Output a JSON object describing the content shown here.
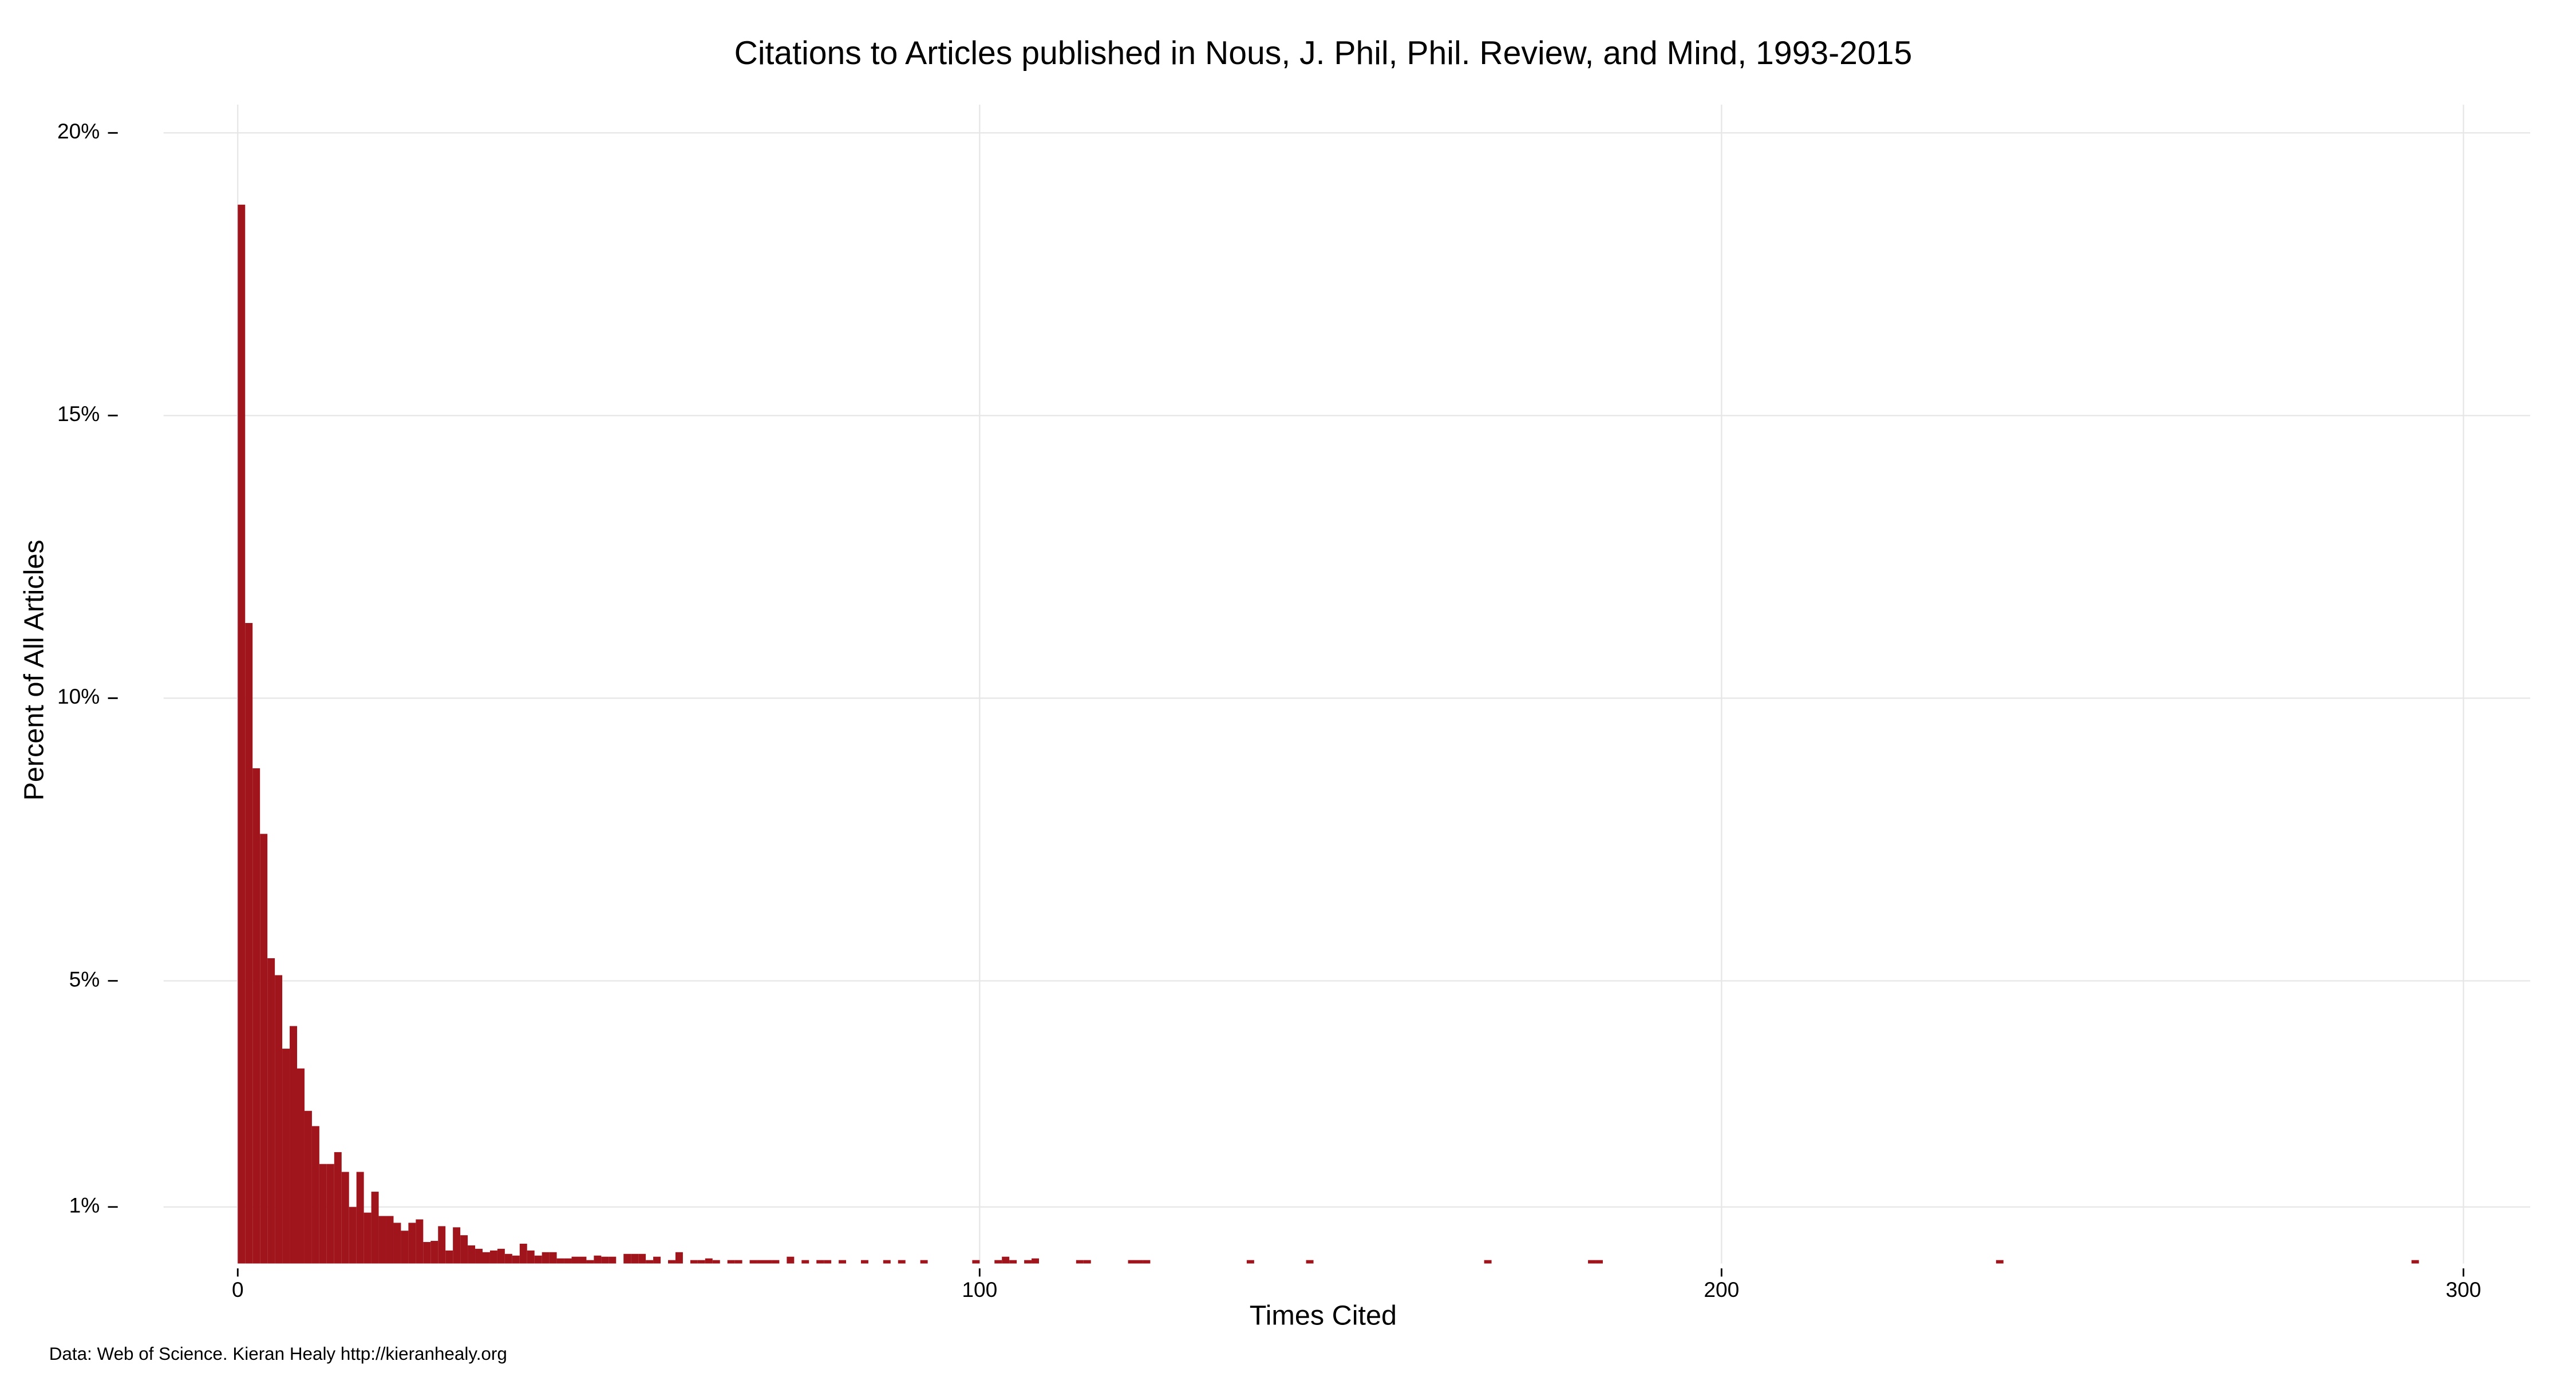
{
  "chart_data": {
    "type": "histogram",
    "title": "Citations to Articles published in Nous, J. Phil, Phil. Review, and Mind, 1993-2015",
    "x_label": "Times Cited",
    "y_label": "Percent of All Articles",
    "caption": "Data: Web of Science. Kieran Healy http://kieranhealy.org",
    "color": "#a0141c",
    "grid": true,
    "xlim": [
      -10,
      309
    ],
    "ylim": [
      0,
      20.5
    ],
    "xticks": [
      0,
      100,
      200,
      300
    ],
    "yticks": [
      {
        "value": 1,
        "label": "1%"
      },
      {
        "value": 5,
        "label": "5%"
      },
      {
        "value": 10,
        "label": "10%"
      },
      {
        "value": 15,
        "label": "15%"
      },
      {
        "value": 20,
        "label": "20%"
      }
    ],
    "bins": [
      0,
      1,
      2,
      3,
      4,
      5,
      6,
      7,
      8,
      9,
      10,
      11,
      12,
      13,
      14,
      15,
      16,
      17,
      18,
      19,
      20,
      21,
      22,
      23,
      24,
      25,
      26,
      27,
      28,
      29,
      30,
      31,
      32,
      33,
      34,
      35,
      36,
      37,
      38,
      39,
      40,
      41,
      42,
      43,
      44,
      45,
      46,
      47,
      48,
      49,
      50,
      51,
      52,
      53,
      54,
      55,
      56,
      57,
      58,
      59,
      60,
      61,
      62,
      63,
      64,
      65,
      66,
      67,
      68,
      69,
      70,
      71,
      72,
      73,
      74,
      75,
      76,
      77,
      78,
      79,
      80,
      81,
      82,
      83,
      84,
      85,
      86,
      87,
      88,
      89,
      90,
      91,
      92,
      93,
      94,
      95,
      96,
      97,
      98,
      99,
      100,
      101,
      102,
      103,
      104,
      105,
      106,
      107,
      108,
      109,
      110,
      111,
      112,
      113,
      114,
      115,
      116,
      117,
      118,
      119,
      120,
      121,
      122,
      123,
      124,
      125,
      126,
      127,
      128,
      129,
      130,
      131,
      132,
      133,
      134,
      135,
      136,
      137,
      138,
      139,
      140,
      141,
      142,
      143,
      144,
      145,
      146,
      147,
      148,
      149,
      150,
      151,
      152,
      153,
      154,
      155,
      156,
      157,
      158,
      159,
      160,
      161,
      162,
      163,
      164,
      165,
      166,
      167,
      168,
      169,
      170,
      171,
      172,
      173,
      174,
      175,
      176,
      177,
      178,
      179,
      180,
      181,
      182,
      183,
      184,
      185,
      186,
      187,
      188,
      189,
      190,
      191,
      192,
      193,
      194,
      195,
      196,
      197,
      198,
      199,
      200,
      201,
      202,
      203,
      204,
      205,
      206,
      207,
      208,
      209,
      210,
      211,
      212,
      213,
      214,
      215,
      216,
      217,
      218,
      219,
      220,
      221,
      222,
      223,
      224,
      225,
      226,
      227,
      228,
      229,
      230,
      231,
      232,
      233,
      234,
      235,
      236,
      237,
      238,
      239,
      240,
      241,
      242,
      243,
      244,
      245,
      246,
      247,
      248,
      249,
      250,
      251,
      252,
      253,
      254,
      255,
      256,
      257,
      258,
      259,
      260,
      261,
      262,
      263,
      264,
      265,
      266,
      267,
      268,
      269,
      270,
      271,
      272,
      273,
      274,
      275,
      276,
      277,
      278,
      279,
      280,
      281,
      282,
      283,
      284,
      285,
      286,
      287,
      288,
      289,
      290,
      291,
      292,
      293,
      294
    ],
    "values": [
      18.73,
      11.33,
      8.76,
      7.6,
      5.4,
      5.1,
      3.8,
      4.2,
      3.45,
      2.7,
      2.43,
      1.76,
      1.76,
      1.97,
      1.62,
      1.0,
      1.62,
      0.9,
      1.27,
      0.84,
      0.84,
      0.72,
      0.58,
      0.72,
      0.78,
      0.38,
      0.4,
      0.66,
      0.23,
      0.64,
      0.5,
      0.32,
      0.26,
      0.2,
      0.23,
      0.26,
      0.17,
      0.14,
      0.35,
      0.23,
      0.14,
      0.2,
      0.2,
      0.09,
      0.09,
      0.12,
      0.12,
      0.06,
      0.14,
      0.12,
      0.12,
      0,
      0.17,
      0.17,
      0.17,
      0.06,
      0.12,
      0,
      0.06,
      0.2,
      0,
      0.06,
      0.06,
      0.09,
      0.06,
      0,
      0.06,
      0.06,
      0,
      0.06,
      0.06,
      0.06,
      0.06,
      0,
      0.12,
      0,
      0.06,
      0,
      0.06,
      0.06,
      0,
      0.06,
      0,
      0,
      0.06,
      0,
      0,
      0.06,
      0,
      0.06,
      0,
      0,
      0.06,
      0,
      0,
      0,
      0,
      0,
      0,
      0.06,
      0,
      0,
      0.06,
      0.12,
      0.06,
      0,
      0.06,
      0.09,
      0,
      0,
      0,
      0,
      0,
      0.06,
      0.06,
      0,
      0,
      0,
      0,
      0,
      0.06,
      0.06,
      0.06,
      0,
      0,
      0,
      0,
      0,
      0,
      0,
      0,
      0,
      0,
      0,
      0,
      0,
      0.06,
      0,
      0,
      0,
      0,
      0,
      0,
      0,
      0.06,
      0,
      0,
      0,
      0,
      0,
      0,
      0,
      0,
      0,
      0,
      0,
      0,
      0,
      0,
      0,
      0,
      0,
      0,
      0,
      0,
      0,
      0,
      0,
      0.06,
      0,
      0,
      0,
      0,
      0,
      0,
      0,
      0,
      0,
      0,
      0,
      0,
      0,
      0.06,
      0.06,
      0,
      0,
      0,
      0,
      0,
      0,
      0,
      0,
      0,
      0,
      0,
      0,
      0,
      0,
      0,
      0,
      0,
      0,
      0,
      0,
      0,
      0,
      0,
      0,
      0,
      0,
      0,
      0,
      0,
      0,
      0,
      0,
      0,
      0,
      0,
      0,
      0,
      0,
      0,
      0,
      0,
      0,
      0,
      0,
      0,
      0,
      0,
      0,
      0,
      0,
      0,
      0,
      0,
      0.06,
      0,
      0,
      0,
      0,
      0,
      0,
      0,
      0,
      0,
      0,
      0,
      0,
      0,
      0,
      0,
      0,
      0,
      0,
      0,
      0,
      0,
      0,
      0,
      0,
      0,
      0,
      0,
      0,
      0,
      0,
      0,
      0,
      0,
      0,
      0,
      0,
      0,
      0,
      0,
      0,
      0,
      0,
      0,
      0,
      0,
      0,
      0,
      0,
      0,
      0,
      0,
      0,
      0,
      0,
      0,
      0.06
    ]
  }
}
